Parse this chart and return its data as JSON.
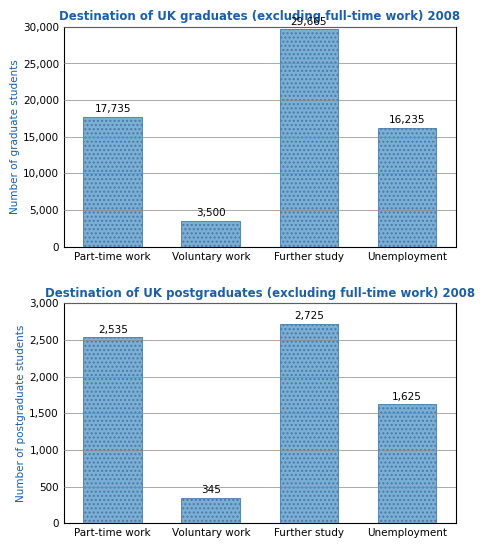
{
  "chart1": {
    "title": "Destination of UK graduates (excluding full-time work) 2008",
    "categories": [
      "Part-time work",
      "Voluntary work",
      "Further study",
      "Unemployment"
    ],
    "values": [
      17735,
      3500,
      29665,
      16235
    ],
    "labels": [
      "17,735",
      "3,500",
      "29,665",
      "16,235"
    ],
    "ylabel": "Number of graduate students",
    "ylim": [
      0,
      30000
    ],
    "yticks": [
      0,
      5000,
      10000,
      15000,
      20000,
      25000,
      30000
    ],
    "ytick_labels": [
      "0",
      "5,000",
      "10,000",
      "15,000",
      "20,000",
      "25,000",
      "30,000"
    ]
  },
  "chart2": {
    "title": "Destination of UK postgraduates (excluding full-time work) 2008",
    "categories": [
      "Part-time work",
      "Voluntary work",
      "Further study",
      "Unemployment"
    ],
    "values": [
      2535,
      345,
      2725,
      1625
    ],
    "labels": [
      "2,535",
      "345",
      "2,725",
      "1,625"
    ],
    "ylabel": "Number of postgraduate students",
    "ylim": [
      0,
      3000
    ],
    "yticks": [
      0,
      500,
      1000,
      1500,
      2000,
      2500,
      3000
    ],
    "ytick_labels": [
      "0",
      "500",
      "1,000",
      "1,500",
      "2,000",
      "2,500",
      "3,000"
    ]
  },
  "bar_color": "#7bafd4",
  "bar_edge_color": "#4a7aaa",
  "title_color": "#1a5fa8",
  "ylabel_color": "#1a5fa8",
  "label_fontsize": 7.5,
  "title_fontsize": 8.5,
  "ylabel_fontsize": 7.5,
  "tick_fontsize": 7.5,
  "background_color": "#ffffff",
  "hatch": "....",
  "grid_color": "#888888"
}
